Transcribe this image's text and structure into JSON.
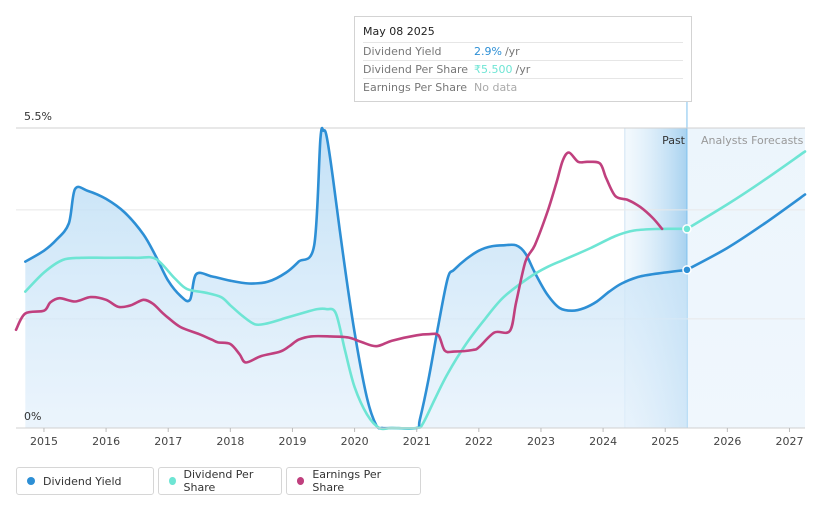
{
  "tooltip": {
    "date": "May 08 2025",
    "rows": [
      {
        "label": "Dividend Yield",
        "value": "2.9%",
        "unit": "/yr",
        "color": "#2d8fd5"
      },
      {
        "label": "Dividend Per Share",
        "value": "₹5.500",
        "unit": "/yr",
        "color": "#6ee5d4"
      },
      {
        "label": "Earnings Per Share",
        "value": "No data",
        "unit": "",
        "color": "#aaaaaa"
      }
    ]
  },
  "chart_data": {
    "type": "line",
    "title": "",
    "xlabel": "",
    "ylabel": "",
    "y_top_label": "5.5%",
    "y_bottom_label": "0%",
    "ylim": [
      0,
      5.5
    ],
    "xlim": [
      2014.55,
      2027.25
    ],
    "x_ticks": [
      "2015",
      "2016",
      "2017",
      "2018",
      "2019",
      "2020",
      "2021",
      "2022",
      "2023",
      "2024",
      "2025",
      "2026",
      "2027"
    ],
    "past_label": "Past",
    "forecast_label": "Analysts Forecasts",
    "past_start": 2024.35,
    "forecast_start": 2025.35,
    "series": [
      {
        "name": "Dividend Yield",
        "color": "#2d8fd5",
        "filled": true,
        "x": [
          2014.7,
          2015.0,
          2015.2,
          2015.4,
          2015.5,
          2015.7,
          2016.0,
          2016.3,
          2016.6,
          2016.8,
          2017.0,
          2017.2,
          2017.35,
          2017.45,
          2017.7,
          2018.0,
          2018.3,
          2018.6,
          2018.9,
          2019.1,
          2019.35,
          2019.45,
          2019.5,
          2019.55,
          2019.65,
          2019.8,
          2020.0,
          2020.2,
          2020.35,
          2020.45,
          2020.6,
          2021.0,
          2021.05,
          2021.2,
          2021.35,
          2021.5,
          2021.6,
          2021.8,
          2022.0,
          2022.2,
          2022.4,
          2022.6,
          2022.75,
          2022.9,
          2023.1,
          2023.3,
          2023.5,
          2023.7,
          2023.9,
          2024.1,
          2024.3,
          2024.6,
          2025.0,
          2025.35
        ],
        "y": [
          3.05,
          3.25,
          3.45,
          3.75,
          4.38,
          4.35,
          4.2,
          3.95,
          3.55,
          3.15,
          2.7,
          2.42,
          2.35,
          2.82,
          2.78,
          2.7,
          2.65,
          2.68,
          2.85,
          3.05,
          3.35,
          5.3,
          5.45,
          5.35,
          4.6,
          3.3,
          1.75,
          0.55,
          0.05,
          0,
          0,
          0,
          0.15,
          0.95,
          1.9,
          2.75,
          2.9,
          3.1,
          3.25,
          3.33,
          3.35,
          3.35,
          3.2,
          2.85,
          2.45,
          2.2,
          2.15,
          2.2,
          2.32,
          2.5,
          2.65,
          2.78,
          2.85,
          2.9
        ]
      },
      {
        "name": "Dividend Yield (forecast)",
        "color": "#2d8fd5",
        "filled": false,
        "x": [
          2025.35,
          2026.0,
          2026.6,
          2027.25
        ],
        "y": [
          2.9,
          3.3,
          3.75,
          4.28
        ]
      },
      {
        "name": "Dividend Per Share",
        "color": "#6ee5d4",
        "filled": false,
        "x": [
          2014.7,
          2015.0,
          2015.3,
          2015.6,
          2016.0,
          2016.5,
          2016.8,
          2017.1,
          2017.3,
          2017.6,
          2017.85,
          2018.0,
          2018.2,
          2018.4,
          2018.6,
          2018.9,
          2019.2,
          2019.4,
          2019.55,
          2019.7,
          2019.85,
          2020.0,
          2020.2,
          2020.4,
          2020.6,
          2021.0,
          2021.1,
          2021.3,
          2021.5,
          2021.8,
          2022.1,
          2022.4,
          2022.8,
          2023.1,
          2023.4,
          2023.8,
          2024.2,
          2024.5,
          2024.9,
          2025.35
        ],
        "y": [
          2.5,
          2.85,
          3.08,
          3.12,
          3.12,
          3.12,
          3.1,
          2.75,
          2.55,
          2.48,
          2.4,
          2.25,
          2.05,
          1.9,
          1.92,
          2.02,
          2.12,
          2.18,
          2.18,
          2.1,
          1.4,
          0.75,
          0.25,
          0,
          0,
          0,
          0.08,
          0.55,
          1.0,
          1.55,
          2.0,
          2.4,
          2.75,
          2.95,
          3.1,
          3.3,
          3.52,
          3.62,
          3.65,
          3.65
        ]
      },
      {
        "name": "Dividend Per Share (forecast)",
        "color": "#6ee5d4",
        "filled": false,
        "x": [
          2025.35,
          2026.0,
          2026.6,
          2027.25
        ],
        "y": [
          3.65,
          4.1,
          4.55,
          5.07
        ]
      },
      {
        "name": "Earnings Per Share",
        "color": "#c0407e",
        "filled": false,
        "x": [
          2014.55,
          2014.7,
          2015.0,
          2015.1,
          2015.25,
          2015.5,
          2015.75,
          2016.0,
          2016.2,
          2016.4,
          2016.6,
          2016.75,
          2016.9,
          2017.0,
          2017.2,
          2017.5,
          2017.7,
          2017.8,
          2018.0,
          2018.15,
          2018.25,
          2018.5,
          2018.8,
          2018.95,
          2019.1,
          2019.3,
          2019.6,
          2019.9,
          2020.1,
          2020.35,
          2020.6,
          2021.0,
          2021.2,
          2021.35,
          2021.45,
          2021.6,
          2021.9,
          2022.0,
          2022.25,
          2022.5,
          2022.6,
          2022.75,
          2022.9,
          2023.1,
          2023.25,
          2023.35,
          2023.45,
          2023.6,
          2023.75,
          2023.95,
          2024.05,
          2024.2,
          2024.4,
          2024.6,
          2024.8,
          2024.95
        ],
        "y": [
          1.8,
          2.1,
          2.15,
          2.3,
          2.38,
          2.32,
          2.4,
          2.35,
          2.22,
          2.25,
          2.35,
          2.28,
          2.12,
          2.02,
          1.85,
          1.72,
          1.62,
          1.57,
          1.54,
          1.35,
          1.2,
          1.32,
          1.4,
          1.5,
          1.62,
          1.68,
          1.68,
          1.66,
          1.58,
          1.5,
          1.6,
          1.7,
          1.72,
          1.7,
          1.42,
          1.4,
          1.43,
          1.48,
          1.75,
          1.78,
          2.3,
          3.05,
          3.35,
          3.95,
          4.5,
          4.9,
          5.05,
          4.88,
          4.88,
          4.85,
          4.58,
          4.25,
          4.18,
          4.05,
          3.85,
          3.65
        ]
      }
    ],
    "highlight_points": [
      {
        "series": "Dividend Yield",
        "x": 2025.35,
        "y": 2.9,
        "color": "#2d8fd5"
      },
      {
        "series": "Dividend Per Share",
        "x": 2025.35,
        "y": 3.65,
        "color": "#6ee5d4"
      }
    ],
    "gridlines": [
      5.5,
      4.0,
      2.0,
      0
    ]
  },
  "legend": [
    {
      "label": "Dividend Yield",
      "color": "#2d8fd5"
    },
    {
      "label": "Dividend Per Share",
      "color": "#6ee5d4"
    },
    {
      "label": "Earnings Per Share",
      "color": "#c0407e"
    }
  ]
}
